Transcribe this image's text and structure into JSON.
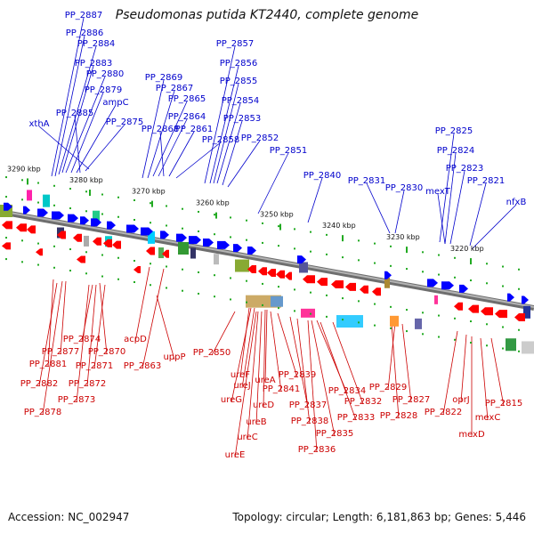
{
  "title": "Pseudomonas putida KT2440, complete genome",
  "footer": {
    "accession": "Accession: NC_002947",
    "summary": "Topology: circular; Length: 6,181,863 bp; Genes: 5,446"
  },
  "colors": {
    "forward_strand": "#0000ff",
    "reverse_strand": "#ff0000",
    "forward_label": "#0000cc",
    "reverse_label": "#cc0000",
    "backbone": "#8c8c8c",
    "tick": "#22aa22"
  },
  "scale_ticks": [
    "3290 kbp",
    "3280 kbp",
    "3270 kbp",
    "3260 kbp",
    "3250 kbp",
    "3240 kbp",
    "3230 kbp",
    "3220 kbp"
  ],
  "forward_genes": [
    "PP_2887",
    "PP_2886",
    "PP_2884",
    "PP_2883",
    "PP_2880",
    "PP_2879",
    "ampC",
    "PP_2885",
    "PP_2875",
    "xthA",
    "PP_2869",
    "PP_2867",
    "PP_2865",
    "PP_2864",
    "PP_2868",
    "PP_2861",
    "PP_2858",
    "PP_2857",
    "PP_2856",
    "PP_2855",
    "PP_2854",
    "PP_2853",
    "PP_2852",
    "PP_2851",
    "PP_2840",
    "PP_2831",
    "PP_2830",
    "PP_2825",
    "PP_2824",
    "PP_2823",
    "mexT",
    "PP_2821",
    "nfxB"
  ],
  "reverse_genes": [
    "PP_2874",
    "PP_2877",
    "PP_2870",
    "PP_2881",
    "PP_2871",
    "PP_2882",
    "PP_2872",
    "PP_2873",
    "PP_2878",
    "acpD",
    "PP_2863",
    "uppP",
    "PP_2850",
    "ureF",
    "ureJ",
    "ureA",
    "ureG",
    "PP_2841",
    "PP_2839",
    "ureD",
    "PP_2837",
    "PP_2834",
    "PP_2838",
    "PP_2832",
    "ureB",
    "PP_2833",
    "PP_2835",
    "ureC",
    "PP_2836",
    "ureE",
    "PP_2829",
    "PP_2827",
    "PP_2828",
    "PP_2822",
    "oprJ",
    "PP_2815",
    "mexC",
    "mexD"
  ]
}
